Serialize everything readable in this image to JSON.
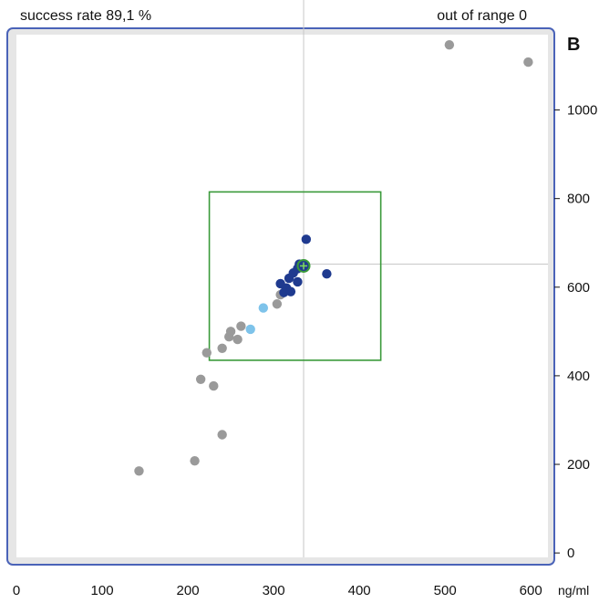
{
  "header": {
    "success_rate": "success rate 89,1 %",
    "out_of_range": "out of range 0",
    "panel_letter": "B"
  },
  "colors": {
    "frame": "#4a63b8",
    "frame_fill": "#e6e6e6",
    "plot_bg": "#ffffff",
    "target_box": "#3a9a3a",
    "gray_point": "#9a9a9a",
    "dark_blue_point": "#1f3a8f",
    "light_blue_point": "#7ec3ea",
    "crosshair": "#c8c8c8"
  },
  "chart_data": {
    "type": "scatter",
    "title": "",
    "xlabel": "",
    "ylabel": "",
    "x_unit": "ng/ml",
    "xlim": [
      0,
      620
    ],
    "ylim": [
      -10,
      1170
    ],
    "x_ticks": [
      0,
      100,
      200,
      300,
      400,
      500,
      600
    ],
    "y_ticks": [
      0,
      200,
      400,
      600,
      800,
      1000
    ],
    "grid": false,
    "target_box": {
      "x": [
        225,
        425
      ],
      "y": [
        435,
        815
      ]
    },
    "crosshair": {
      "x": 335,
      "y": 652
    },
    "target_marker": {
      "x": 335,
      "y": 648
    },
    "series": [
      {
        "color_key": "gray_point",
        "points": [
          [
            143,
            185
          ],
          [
            208,
            208
          ],
          [
            240,
            267
          ],
          [
            215,
            392
          ],
          [
            230,
            377
          ],
          [
            222,
            452
          ],
          [
            240,
            462
          ],
          [
            248,
            488
          ],
          [
            258,
            482
          ],
          [
            250,
            500
          ],
          [
            262,
            512
          ],
          [
            304,
            562
          ],
          [
            308,
            583
          ],
          [
            505,
            1147
          ],
          [
            597,
            1108
          ]
        ]
      },
      {
        "color_key": "light_blue_point",
        "points": [
          [
            288,
            553
          ],
          [
            273,
            505
          ]
        ]
      },
      {
        "color_key": "dark_blue_point",
        "points": [
          [
            338,
            708
          ],
          [
            362,
            630
          ],
          [
            308,
            608
          ],
          [
            318,
            620
          ],
          [
            315,
            598
          ],
          [
            312,
            588
          ],
          [
            320,
            590
          ],
          [
            323,
            632
          ],
          [
            328,
            612
          ],
          [
            328,
            642
          ],
          [
            330,
            652
          ],
          [
            334,
            645
          ],
          [
            337,
            648
          ]
        ]
      }
    ]
  }
}
